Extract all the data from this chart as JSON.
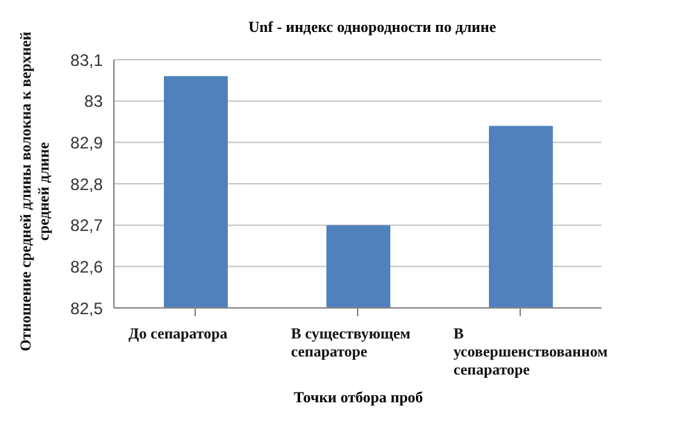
{
  "chart_data": {
    "type": "bar",
    "title": "Unf - индекс однородности по длине",
    "xlabel": "Точки отбора проб",
    "ylabel": "Отношение средней длины волокна к верхней средней длине",
    "categories": [
      "До сепаратора",
      "В существующем сепараторе",
      "В усовершенствованном сепараторе"
    ],
    "values": [
      83.06,
      82.7,
      82.94
    ],
    "color": "#4f81bd",
    "ylim": [
      82.5,
      83.1
    ],
    "yticks": [
      {
        "value": 82.5,
        "label": "82,5"
      },
      {
        "value": 82.6,
        "label": "82,6"
      },
      {
        "value": 82.7,
        "label": "82,7"
      },
      {
        "value": 82.8,
        "label": "82,8"
      },
      {
        "value": 82.9,
        "label": "82,9"
      },
      {
        "value": 83,
        "label": "83"
      },
      {
        "value": 83.1,
        "label": "83,1"
      }
    ],
    "grid": "y",
    "legend": false
  }
}
